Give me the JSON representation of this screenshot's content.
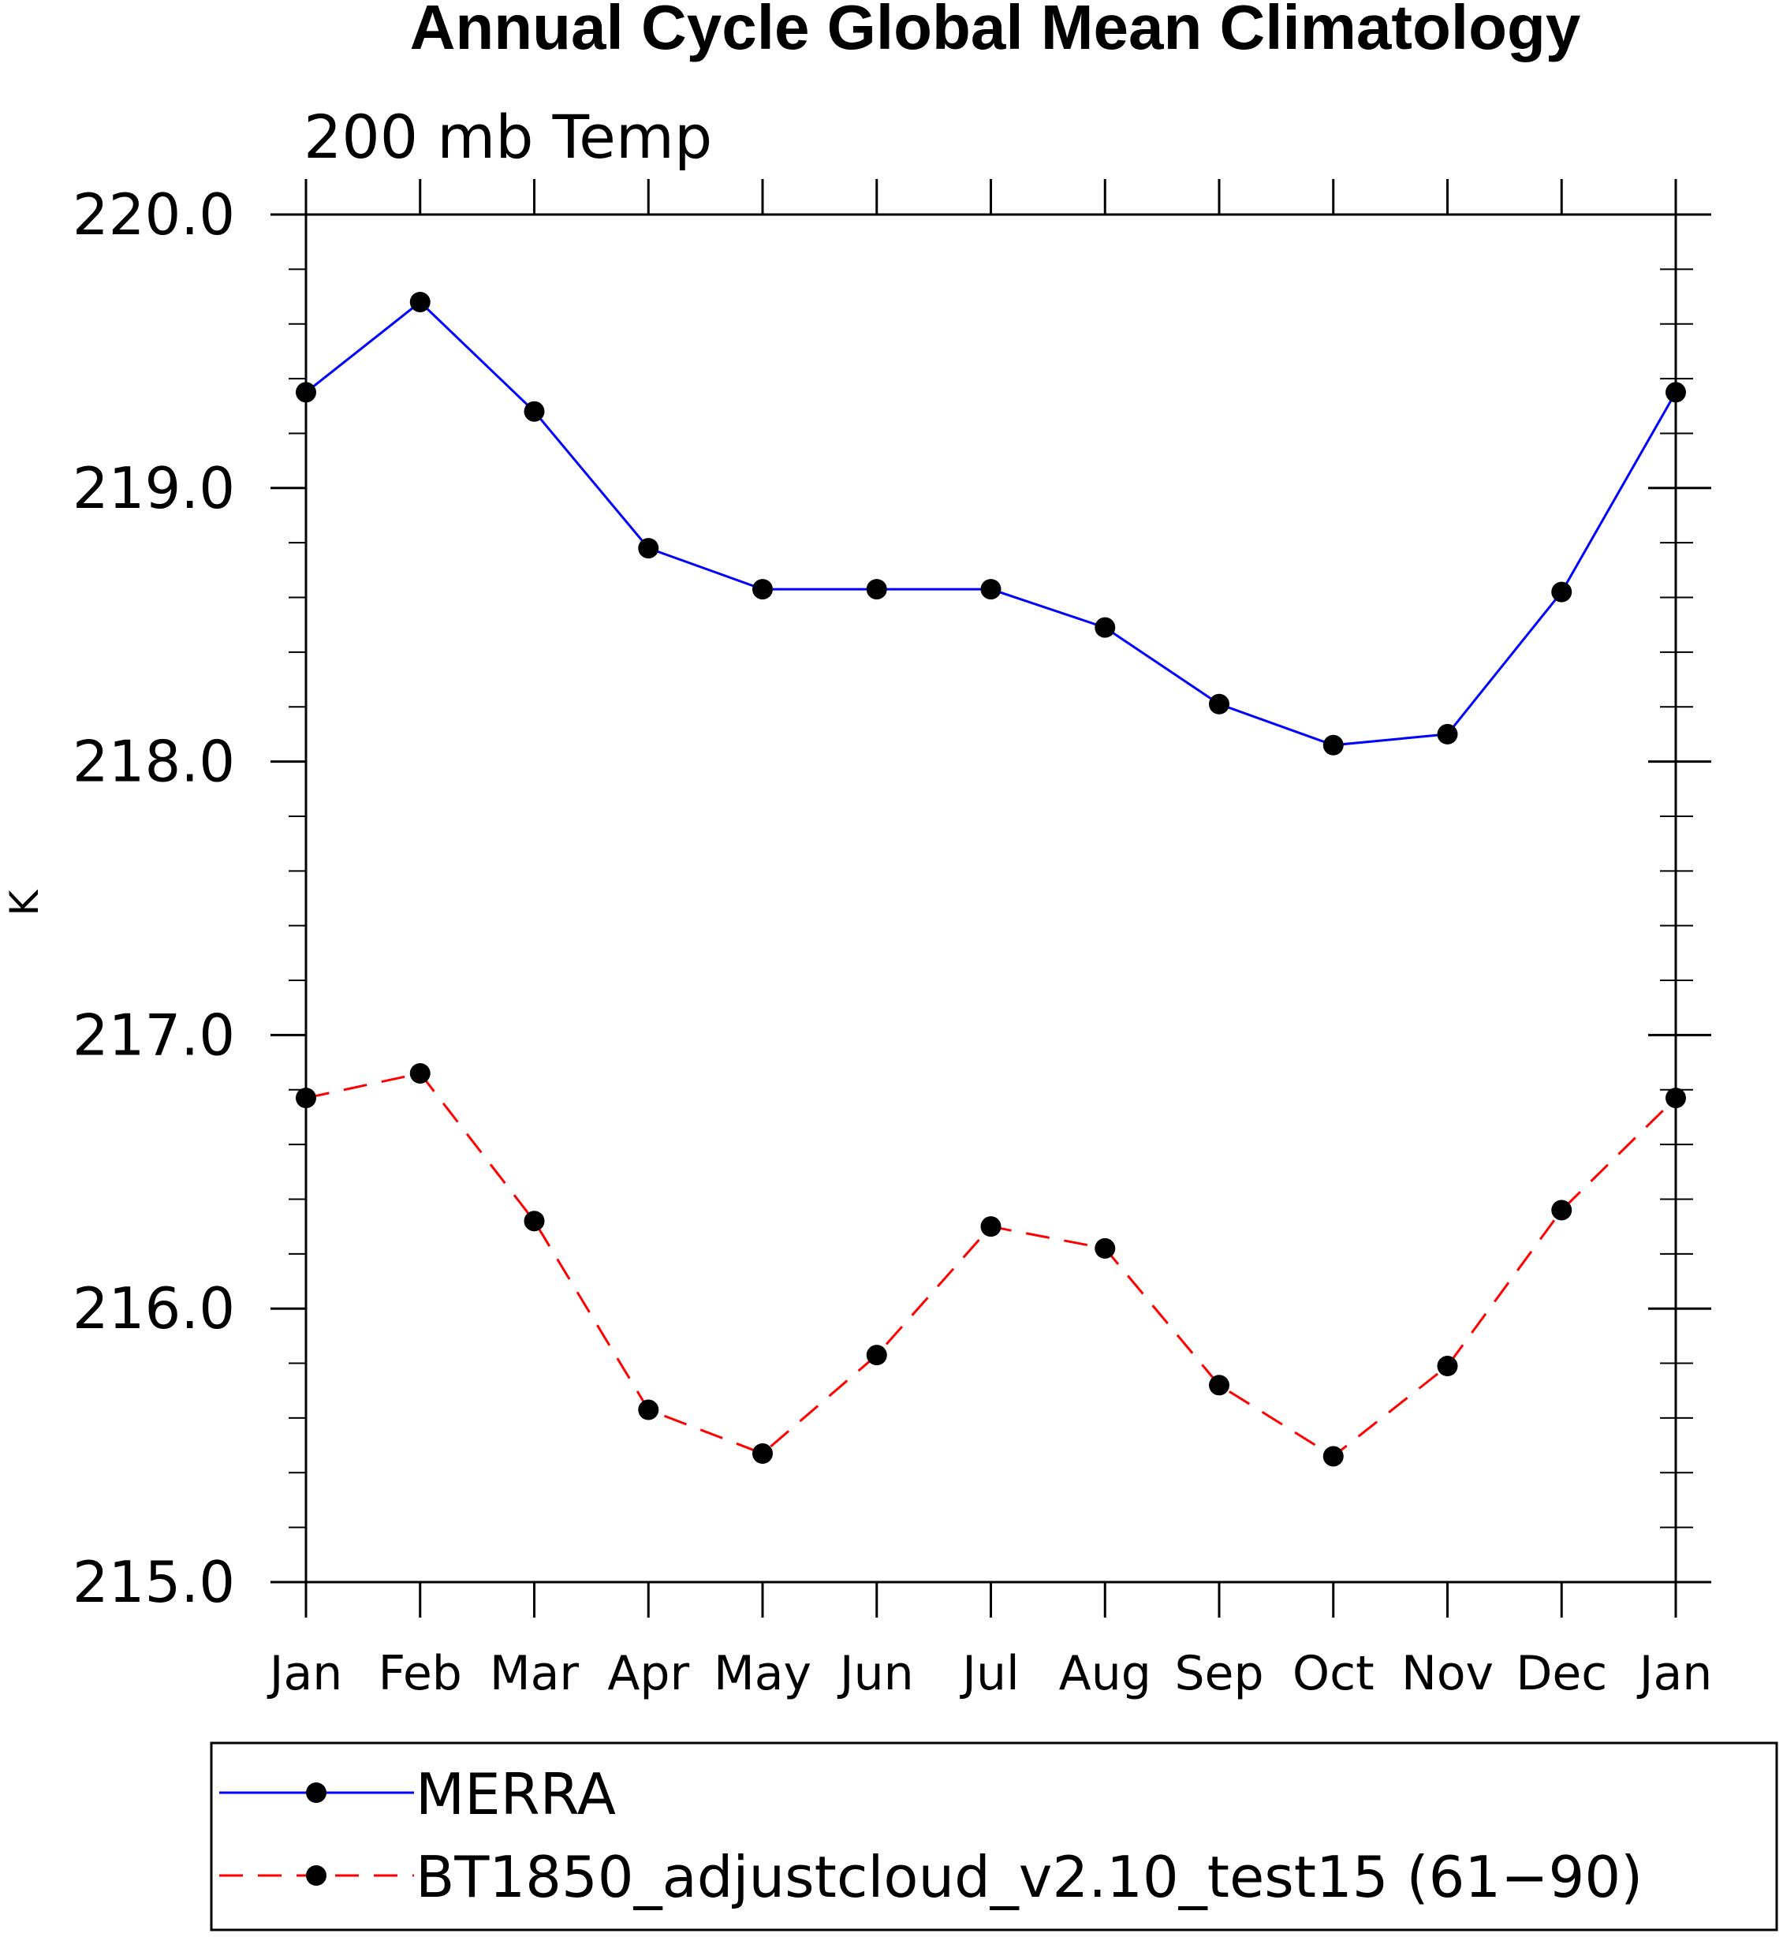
{
  "chart_data": {
    "type": "line",
    "title": "Annual Cycle Global Mean Climatology",
    "subtitle": "200 mb Temp",
    "ylabel": "K",
    "xlabel": "",
    "categories": [
      "Jan",
      "Feb",
      "Mar",
      "Apr",
      "May",
      "Jun",
      "Jul",
      "Aug",
      "Sep",
      "Oct",
      "Nov",
      "Dec",
      "Jan"
    ],
    "ylim": [
      215.0,
      220.0
    ],
    "yticks": [
      "215.0",
      "216.0",
      "217.0",
      "218.0",
      "219.0",
      "220.0"
    ],
    "series": [
      {
        "name": "MERRA",
        "color": "#0000ff",
        "dash": "solid",
        "values": [
          219.35,
          219.68,
          219.28,
          218.78,
          218.63,
          218.63,
          218.63,
          218.49,
          218.21,
          218.06,
          218.1,
          218.62,
          219.35
        ]
      },
      {
        "name": "BT1850_adjustcloud_v2.10_test15 (61−90)",
        "color": "#ff0000",
        "dash": "dashed",
        "values": [
          216.77,
          216.86,
          216.32,
          215.63,
          215.47,
          215.83,
          216.3,
          216.22,
          215.72,
          215.46,
          215.79,
          216.36,
          216.77
        ]
      }
    ],
    "grid": false,
    "legend_position": "bottom"
  }
}
